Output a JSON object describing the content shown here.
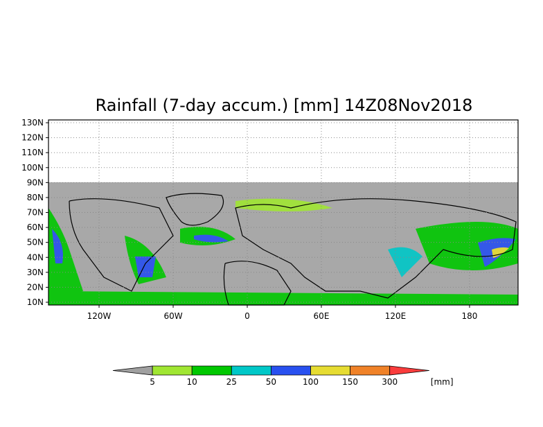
{
  "map": {
    "title": "Rainfall (7-day accum.) [mm] 14Z08Nov2018",
    "lat_ticks": [
      {
        "value": 130,
        "label": "130N"
      },
      {
        "value": 120,
        "label": "120N"
      },
      {
        "value": 110,
        "label": "110N"
      },
      {
        "value": 100,
        "label": "100N"
      },
      {
        "value": 90,
        "label": "90N"
      },
      {
        "value": 80,
        "label": "80N"
      },
      {
        "value": 70,
        "label": "70N"
      },
      {
        "value": 60,
        "label": "60N"
      },
      {
        "value": 50,
        "label": "50N"
      },
      {
        "value": 40,
        "label": "40N"
      },
      {
        "value": 30,
        "label": "30N"
      },
      {
        "value": 20,
        "label": "20N"
      },
      {
        "value": 10,
        "label": "10N"
      }
    ],
    "lon_ticks": [
      {
        "value": -120,
        "label": "120W"
      },
      {
        "value": -60,
        "label": "60W"
      },
      0,
      {
        "value": 60,
        "label": "60E"
      },
      {
        "value": 120,
        "label": "120E"
      },
      180
    ],
    "colorbar": {
      "levels": [
        5,
        10,
        25,
        50,
        100,
        150,
        300
      ],
      "colors": [
        "#a0a0a0",
        "#a0e632",
        "#00c800",
        "#00c8c8",
        "#2850f0",
        "#e6dc32",
        "#f08228",
        "#fa3c3c"
      ],
      "unit": "[mm]"
    }
  }
}
